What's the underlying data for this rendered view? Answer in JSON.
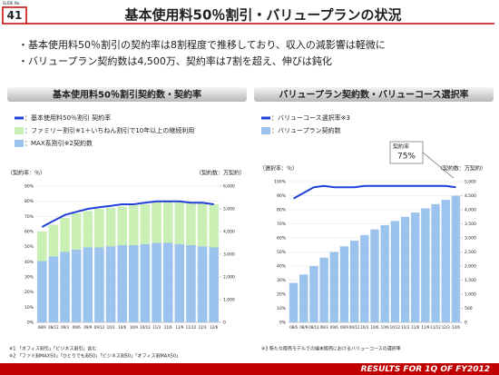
{
  "slide": {
    "slide_label": "SLIDE No.",
    "number": "41",
    "title": "基本使用料50％割引・バリュープランの状況",
    "bullets": [
      "・基本使用料50％割引の契約率は8割程度で推移しており、収入の減影響は軽微に",
      "・バリュープラン契約数は4,500万、契約率は7割を超え、伸びは鈍化"
    ],
    "footer": "RESULTS FOR 1Q OF FY2012"
  },
  "chart_data": [
    {
      "type": "bar",
      "stacked": true,
      "title": "基本使用料50％割引契約数・契約率",
      "ylabel": "（契約率：％）",
      "y2label": "（契約数：万契約）",
      "categories": [
        "08/9",
        "08/12",
        "09/3",
        "09/6",
        "09/9",
        "09/12",
        "10/3",
        "10/6",
        "10/9",
        "10/12",
        "11/3",
        "11/6",
        "11/9",
        "11/12",
        "12/3",
        "12/6"
      ],
      "series": [
        {
          "name": "：基本使用料50％割引 契約率",
          "type": "line",
          "color": "#1f3fd6",
          "values": [
            63,
            67,
            71,
            73,
            75,
            76,
            77,
            78,
            78,
            79,
            80,
            80,
            80,
            79,
            79,
            78
          ]
        },
        {
          "name": "：ファミリー割引※1＋いちねん割引で10年以上の継続利用",
          "type": "bar",
          "axis": "y2",
          "color": "#c9efb4",
          "values": [
            1300,
            1400,
            1500,
            1600,
            1600,
            1700,
            1700,
            1700,
            1750,
            1750,
            1800,
            1800,
            1850,
            1850,
            1900,
            1900
          ]
        },
        {
          "name": "：MAX系割引※2契約数",
          "type": "bar",
          "axis": "y2",
          "color": "#9cc3ee",
          "values": [
            2700,
            2900,
            3100,
            3200,
            3300,
            3300,
            3350,
            3400,
            3400,
            3450,
            3500,
            3500,
            3450,
            3400,
            3350,
            3300
          ]
        }
      ],
      "ylim": [
        0,
        90
      ],
      "yticks": [
        {
          "value": 0,
          "label": "0%"
        },
        {
          "value": 10,
          "label": "10%"
        },
        {
          "value": 20,
          "label": "20%"
        },
        {
          "value": 30,
          "label": "30%"
        },
        {
          "value": 40,
          "label": "40%"
        },
        {
          "value": 50,
          "label": "50%"
        },
        {
          "value": 60,
          "label": "60%"
        },
        {
          "value": 70,
          "label": "70%"
        },
        {
          "value": 80,
          "label": "80%"
        },
        {
          "value": 90,
          "label": "90%"
        }
      ],
      "y2lim": [
        0,
        6000
      ],
      "y2ticks": [
        0,
        {
          "value": 1000,
          "label": "1,000"
        },
        {
          "value": 2000,
          "label": "2,000"
        },
        {
          "value": 3000,
          "label": "3,000"
        },
        {
          "value": 4000,
          "label": "4,000"
        },
        {
          "value": 5000,
          "label": "5,000"
        },
        {
          "value": 6000,
          "label": "6,000"
        }
      ],
      "grid": true,
      "notes": [
        "※1 「オフィス割引」「ビジネス割引」含む",
        "※2 「ファミ割MAX50」「ひとりでも割50」「ビジネス割50」「オフィス割MAX50」"
      ]
    },
    {
      "type": "bar",
      "stacked": false,
      "title": "バリュープラン契約数・バリューコース選択率",
      "ylabel": "（選択率：％）",
      "y2label": "（契約数：万契約）",
      "categories": [
        "08/6",
        "08/9",
        "08/12",
        "09/3",
        "09/6",
        "09/9",
        "09/12",
        "10/3",
        "10/6",
        "10/9",
        "10/12",
        "11/3",
        "11/6",
        "11/9",
        "11/12",
        "12/3",
        "12/6"
      ],
      "series": [
        {
          "name": "：バリューコース選択率※3",
          "type": "line",
          "color": "#1f3fd6",
          "values": [
            88,
            92,
            96,
            97,
            96,
            96,
            96,
            97,
            97,
            97,
            97,
            97,
            97,
            97,
            97,
            97,
            96
          ]
        },
        {
          "name": "：バリュープラン契約数",
          "type": "bar",
          "axis": "y2",
          "color": "#9cc3ee",
          "values": [
            1400,
            1700,
            2000,
            2300,
            2500,
            2700,
            2900,
            3100,
            3300,
            3450,
            3600,
            3750,
            3900,
            4050,
            4200,
            4350,
            4500
          ]
        }
      ],
      "ylim": [
        0,
        100
      ],
      "yticks": [
        {
          "value": 0,
          "label": "0%"
        },
        {
          "value": 10,
          "label": "10%"
        },
        {
          "value": 20,
          "label": "20%"
        },
        {
          "value": 30,
          "label": "30%"
        },
        {
          "value": 40,
          "label": "40%"
        },
        {
          "value": 50,
          "label": "50%"
        },
        {
          "value": 60,
          "label": "60%"
        },
        {
          "value": 70,
          "label": "70%"
        },
        {
          "value": 80,
          "label": "80%"
        },
        {
          "value": 90,
          "label": "90%"
        },
        {
          "value": 100,
          "label": "100%"
        }
      ],
      "y2lim": [
        0,
        5000
      ],
      "y2ticks": [
        0,
        500,
        {
          "value": 1000,
          "label": "1,000"
        },
        {
          "value": 1500,
          "label": "1,500"
        },
        {
          "value": 2000,
          "label": "2,000"
        },
        {
          "value": 2500,
          "label": "2,500"
        },
        {
          "value": 3000,
          "label": "3,000"
        },
        {
          "value": 3500,
          "label": "3,500"
        },
        {
          "value": 4000,
          "label": "4,000"
        },
        {
          "value": 4500,
          "label": "4,500"
        },
        {
          "value": 5000,
          "label": "5,000"
        }
      ],
      "grid": true,
      "annotation": {
        "label": "契約率",
        "value": "75%"
      },
      "notes": [
        "※3 新たな販売モデルでの端末販売におけるバリューコースの選択率"
      ]
    }
  ]
}
